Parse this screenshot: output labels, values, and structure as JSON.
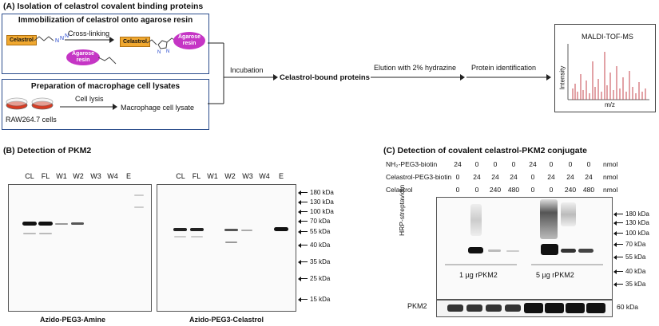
{
  "panelA": {
    "title": "(A) Isolation of celastrol covalent binding proteins",
    "immobilization": {
      "heading": "Immobilization of celastrol onto agarose resin",
      "celastrol_tag": "Celastrol",
      "crosslink_label": "Cross-linking",
      "agarose_resin": "Agarose resin",
      "product_tag": "Celastrol",
      "product_resin": "Agarose resin"
    },
    "lysate": {
      "heading": "Preparation of macrophage cell lysates",
      "cell_lysis_label": "Cell lysis",
      "product": "Macrophage cell lysate",
      "cells": "RAW264.7 cells"
    },
    "incubation": "Incubation",
    "bound": "Celastrol-bound proteins",
    "elution": "Elution with 2% hydrazine",
    "identification": "Protein identification",
    "ms": {
      "title": "MALDI-TOF-MS",
      "ylabel": "Intensity",
      "xlabel": "m/z"
    }
  },
  "panelB": {
    "title": "(B) Detection of PKM2",
    "lanes": [
      "CL",
      "FL",
      "W1",
      "W2",
      "W3",
      "W4",
      "E"
    ],
    "blot1_label": "Azido-PEG3-Amine",
    "blot2_label": "Azido-PEG3-Celastrol",
    "markers": [
      "180 kDa",
      "130 kDa",
      "100 kDa",
      "70 kDa",
      "55 kDa",
      "40 kDa",
      "35 kDa",
      "25 kDa",
      "15 kDa"
    ]
  },
  "panelC": {
    "title": "(C) Detection of covalent celastrol-PKM2 conjugate",
    "rows": [
      {
        "label": "NH₂-PEG3-biotin",
        "values": [
          "24",
          "0",
          "0",
          "0",
          "24",
          "0",
          "0",
          "0"
        ],
        "unit": "nmol"
      },
      {
        "label": "Celastrol-PEG3-biotin",
        "values": [
          "0",
          "24",
          "24",
          "24",
          "0",
          "24",
          "24",
          "24"
        ],
        "unit": "nmol"
      },
      {
        "label": "Celastrol",
        "values": [
          "0",
          "0",
          "240",
          "480",
          "0",
          "0",
          "240",
          "480"
        ],
        "unit": "nmol"
      }
    ],
    "ylabel": "HRP-streptavidin",
    "group1": "1 µg rPKM2",
    "group2": "5 µg rPKM2",
    "pkm2_label": "PKM2",
    "pkm2_kda": "60 kDa",
    "markers": [
      "180 kDa",
      "130 kDa",
      "100 kDa",
      "70 kDa",
      "55 kDa",
      "40 kDa",
      "35 kDa"
    ]
  }
}
